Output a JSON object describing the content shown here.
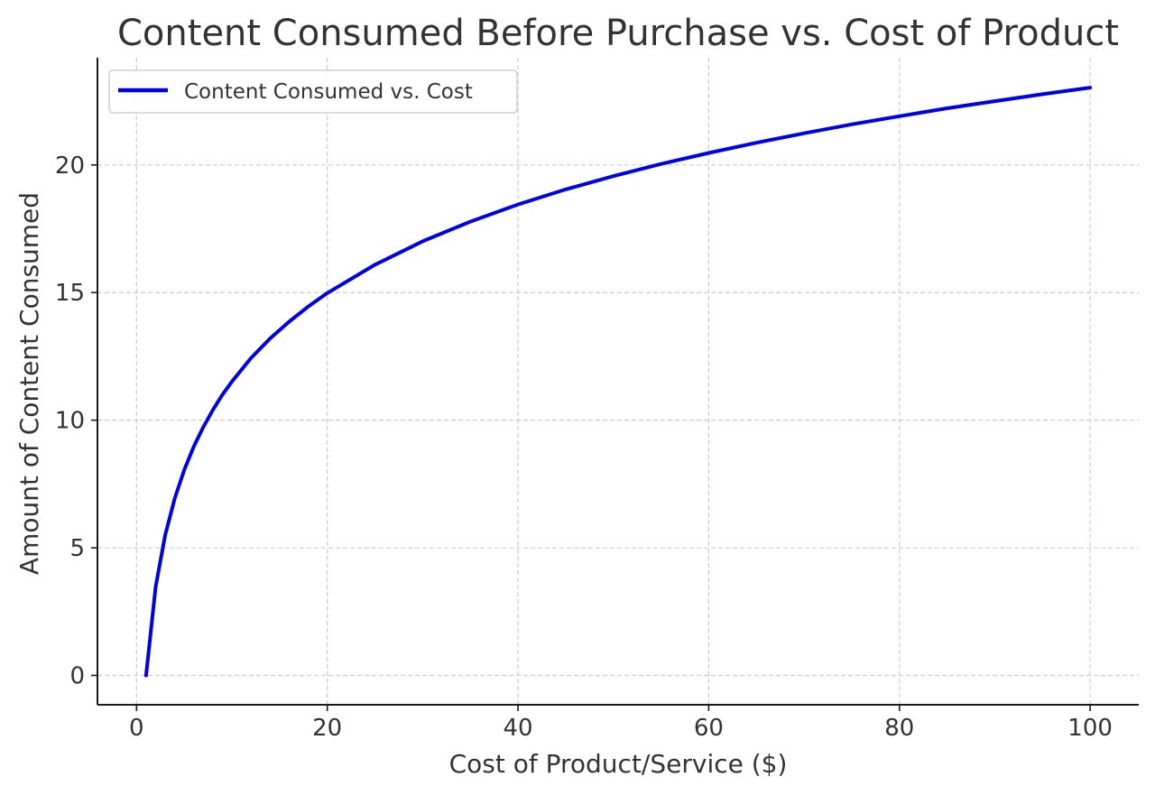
{
  "chart_data": {
    "type": "line",
    "title": "Content Consumed Before Purchase vs. Cost of Product",
    "xlabel": "Cost of Product/Service ($)",
    "ylabel": "Amount of Content Consumed",
    "xlim": [
      -4.1,
      105.1
    ],
    "ylim": [
      -1.15,
      24.2
    ],
    "xticks": [
      0,
      20,
      40,
      60,
      80,
      100
    ],
    "yticks": [
      0,
      5,
      10,
      15,
      20
    ],
    "grid": true,
    "legend_position": "top-left",
    "series": [
      {
        "name": "Content Consumed vs. Cost",
        "color": "#0000e6",
        "x": [
          1,
          2,
          3,
          4,
          5,
          6,
          7,
          8,
          9,
          10,
          12,
          14,
          16,
          18,
          20,
          25,
          30,
          35,
          40,
          45,
          50,
          55,
          60,
          65,
          70,
          75,
          80,
          85,
          90,
          95,
          100
        ],
        "y": [
          0,
          3.47,
          5.49,
          6.93,
          8.05,
          8.96,
          9.73,
          10.4,
          10.99,
          11.51,
          12.43,
          13.2,
          13.86,
          14.45,
          14.98,
          16.09,
          17.01,
          17.78,
          18.45,
          19.04,
          19.56,
          20.04,
          20.47,
          20.87,
          21.24,
          21.59,
          21.91,
          22.22,
          22.5,
          22.77,
          23.03
        ]
      }
    ]
  }
}
